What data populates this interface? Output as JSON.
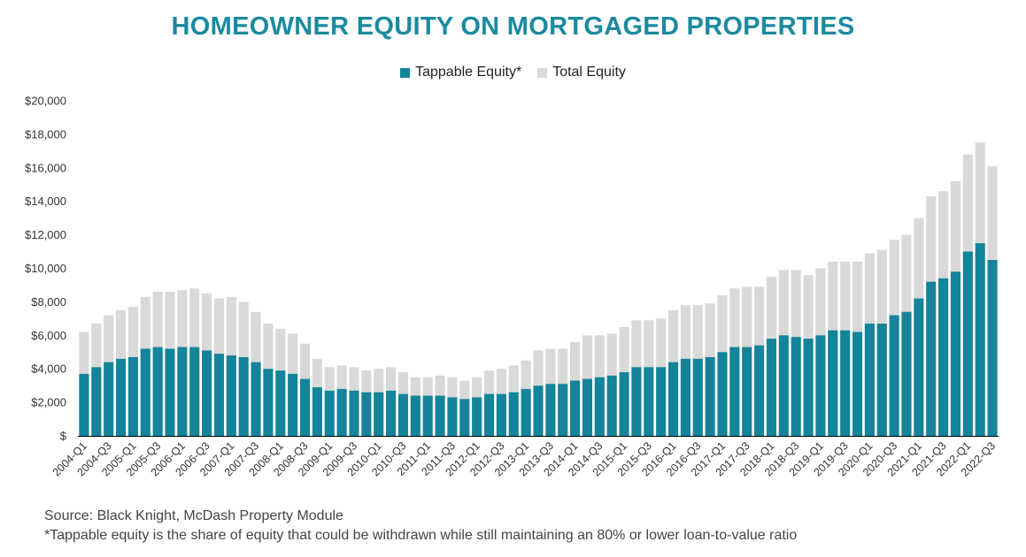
{
  "colors": {
    "title": "#1b8aa0",
    "tappable": "#13849a",
    "total": "#d9d9d9",
    "axis": "#000000"
  },
  "chart_data": {
    "type": "bar",
    "title": "HOMEOWNER EQUITY ON MORTGAGED PROPERTIES",
    "legend_position": "top-center",
    "grid": false,
    "ylim": [
      0,
      20000
    ],
    "y_ticks": [
      "$",
      "$2,000",
      "$4,000",
      "$6,000",
      "$8,000",
      "$10,000",
      "$12,000",
      "$14,000",
      "$16,000",
      "$18,000",
      "$20,000"
    ],
    "categories": [
      "2004-Q1",
      "2004-Q2",
      "2004-Q3",
      "2004-Q4",
      "2005-Q1",
      "2005-Q2",
      "2005-Q3",
      "2005-Q4",
      "2006-Q1",
      "2006-Q2",
      "2006-Q3",
      "2006-Q4",
      "2007-Q1",
      "2007-Q2",
      "2007-Q3",
      "2007-Q4",
      "2008-Q1",
      "2008-Q2",
      "2008-Q3",
      "2008-Q4",
      "2009-Q1",
      "2009-Q2",
      "2009-Q3",
      "2009-Q4",
      "2010-Q1",
      "2010-Q2",
      "2010-Q3",
      "2010-Q4",
      "2011-Q1",
      "2011-Q2",
      "2011-Q3",
      "2011-Q4",
      "2012-Q1",
      "2012-Q2",
      "2012-Q3",
      "2012-Q4",
      "2013-Q1",
      "2013-Q2",
      "2013-Q3",
      "2013-Q4",
      "2014-Q1",
      "2014-Q2",
      "2014-Q3",
      "2014-Q4",
      "2015-Q1",
      "2015-Q2",
      "2015-Q3",
      "2015-Q4",
      "2016-Q1",
      "2016-Q2",
      "2016-Q3",
      "2016-Q4",
      "2017-Q1",
      "2017-Q2",
      "2017-Q3",
      "2017-Q4",
      "2018-Q1",
      "2018-Q2",
      "2018-Q3",
      "2018-Q4",
      "2019-Q1",
      "2019-Q2",
      "2019-Q3",
      "2019-Q4",
      "2020-Q1",
      "2020-Q2",
      "2020-Q3",
      "2020-Q4",
      "2021-Q1",
      "2021-Q2",
      "2021-Q3",
      "2021-Q4",
      "2022-Q1",
      "2022-Q2",
      "2022-Q3"
    ],
    "x_tick_labels": [
      "2004-Q1",
      "2004-Q3",
      "2005-Q1",
      "2005-Q3",
      "2006-Q1",
      "2006-Q3",
      "2007-Q1",
      "2007-Q3",
      "2008-Q1",
      "2008-Q3",
      "2009-Q1",
      "2009-Q3",
      "2010-Q1",
      "2010-Q3",
      "2011-Q1",
      "2011-Q3",
      "2012-Q1",
      "2012-Q3",
      "2013-Q1",
      "2013-Q3",
      "2014-Q1",
      "2014-Q3",
      "2015-Q1",
      "2015-Q3",
      "2016-Q1",
      "2016-Q3",
      "2017-Q1",
      "2017-Q3",
      "2018-Q1",
      "2018-Q3",
      "2019-Q1",
      "2019-Q3",
      "2020-Q1",
      "2020-Q3",
      "2021-Q1",
      "2021-Q3",
      "2022-Q1",
      "2022-Q3"
    ],
    "series": [
      {
        "name": "Total Equity",
        "values": [
          6200,
          6700,
          7200,
          7500,
          7700,
          8300,
          8600,
          8600,
          8700,
          8800,
          8500,
          8200,
          8300,
          8000,
          7400,
          6700,
          6400,
          6100,
          5500,
          4600,
          4100,
          4200,
          4100,
          3900,
          4000,
          4100,
          3800,
          3500,
          3500,
          3600,
          3500,
          3300,
          3500,
          3900,
          4000,
          4200,
          4500,
          5100,
          5200,
          5200,
          5600,
          6000,
          6000,
          6100,
          6500,
          6900,
          6900,
          7000,
          7500,
          7800,
          7800,
          7900,
          8400,
          8800,
          8900,
          8900,
          9500,
          9900,
          9900,
          9600,
          10000,
          10400,
          10400,
          10400,
          10900,
          11100,
          11700,
          12000,
          13000,
          14300,
          14600,
          15200,
          16800,
          17500,
          16100
        ]
      },
      {
        "name": "Tappable Equity*",
        "values": [
          3700,
          4100,
          4400,
          4600,
          4700,
          5200,
          5300,
          5200,
          5300,
          5300,
          5100,
          4900,
          4800,
          4700,
          4400,
          4000,
          3900,
          3700,
          3400,
          2900,
          2700,
          2800,
          2700,
          2600,
          2600,
          2700,
          2500,
          2400,
          2400,
          2400,
          2300,
          2200,
          2300,
          2500,
          2500,
          2600,
          2800,
          3000,
          3100,
          3100,
          3300,
          3400,
          3500,
          3600,
          3800,
          4100,
          4100,
          4100,
          4400,
          4600,
          4600,
          4700,
          5000,
          5300,
          5300,
          5400,
          5800,
          6000,
          5900,
          5800,
          6000,
          6300,
          6300,
          6200,
          6700,
          6700,
          7200,
          7400,
          8200,
          9200,
          9400,
          9800,
          11000,
          11500,
          10500
        ]
      }
    ],
    "source": "Source: Black Knight, McDash Property Module",
    "footnote": "*Tappable equity is the share of equity that could be withdrawn while still maintaining an 80% or lower loan-to-value ratio"
  }
}
